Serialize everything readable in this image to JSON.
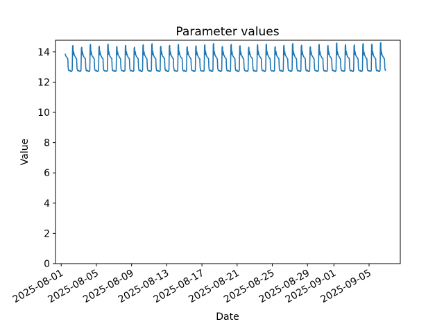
{
  "figure": {
    "background": "#ffffff"
  },
  "chart_data": {
    "type": "line",
    "title": "Parameter values",
    "xlabel": "Date",
    "ylabel": "Value",
    "grid": false,
    "legend": null,
    "line_color": "#1f77b4",
    "line_width": 1.6,
    "ylim": [
      0,
      14.77
    ],
    "yticks": [
      0,
      2,
      4,
      6,
      8,
      10,
      12,
      14
    ],
    "xlim_days": [
      -0.65,
      38.55
    ],
    "x_epoch": "2025-08-01",
    "xticks": [
      {
        "day_offset": 0,
        "label": "2025-08-01"
      },
      {
        "day_offset": 4,
        "label": "2025-08-05"
      },
      {
        "day_offset": 8,
        "label": "2025-08-09"
      },
      {
        "day_offset": 12,
        "label": "2025-08-13"
      },
      {
        "day_offset": 16,
        "label": "2025-08-17"
      },
      {
        "day_offset": 20,
        "label": "2025-08-21"
      },
      {
        "day_offset": 24,
        "label": "2025-08-25"
      },
      {
        "day_offset": 28,
        "label": "2025-08-29"
      },
      {
        "day_offset": 31,
        "label": "2025-09-01"
      },
      {
        "day_offset": 35,
        "label": "2025-09-05"
      }
    ],
    "series": {
      "name": "parameter",
      "start_date": "2025-08-01",
      "end_date": "2025-09-06",
      "start_day_offset": 0.4583,
      "end_day_offset": 36.875,
      "interval_hours": 1,
      "value_min": 12.7,
      "value_max": 14.6,
      "daily_pattern": [
        12.78,
        12.74,
        12.71,
        12.7,
        12.74,
        12.72,
        12.8,
        14.4,
        14.45,
        13.82,
        14.02,
        13.85,
        13.78,
        13.72,
        13.68,
        13.64,
        13.6,
        13.57,
        13.55,
        12.95,
        12.8,
        12.76,
        12.74,
        12.76
      ],
      "peak_hours": [
        7,
        8
      ],
      "daily_peaks": [
        14.42,
        14.31,
        14.48,
        14.38,
        14.52,
        14.35,
        14.44,
        14.3,
        14.47,
        14.55,
        14.36,
        14.43,
        14.5,
        14.33,
        14.41,
        14.47,
        14.54,
        14.37,
        14.49,
        14.4,
        14.32,
        14.46,
        14.51,
        14.35,
        14.42,
        14.56,
        14.44,
        14.33,
        14.5,
        14.41,
        14.58,
        14.48,
        14.45,
        14.55,
        14.52,
        14.6
      ]
    }
  }
}
